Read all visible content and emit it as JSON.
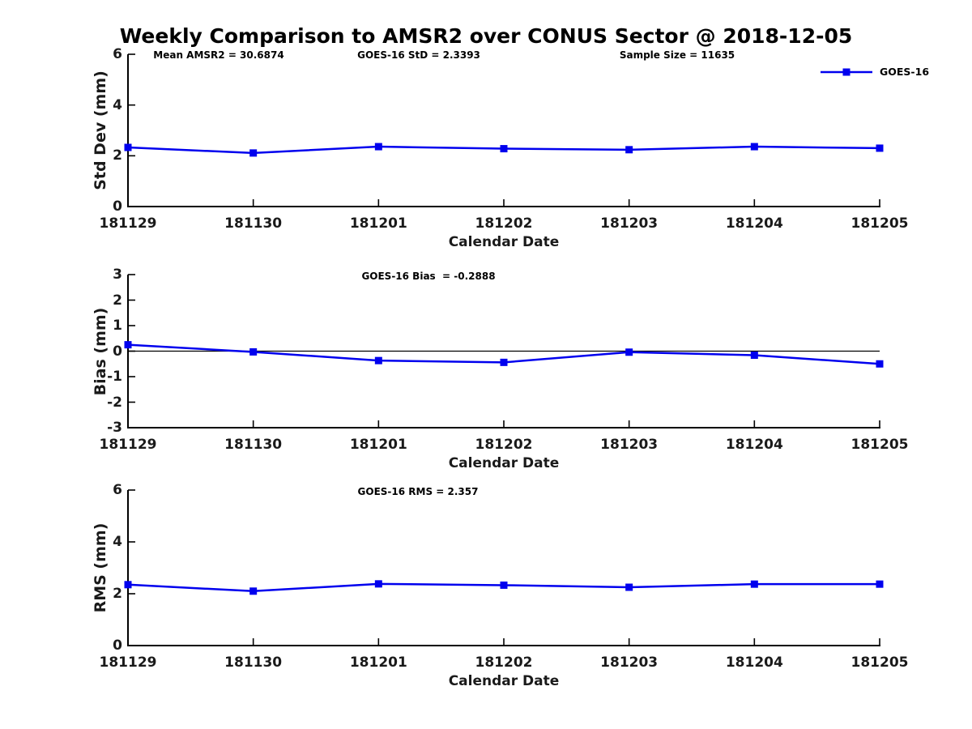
{
  "title": "Weekly Comparison to AMSR2 over CONUS Sector @ 2018-12-05",
  "colors": {
    "line": "#0000ee",
    "axis": "#000000"
  },
  "legend": {
    "series_label": "GOES-16"
  },
  "chart_data": [
    {
      "type": "line",
      "panel": "std-dev",
      "categories": [
        "181129",
        "181130",
        "181201",
        "181202",
        "181203",
        "181204",
        "181205"
      ],
      "series": [
        {
          "name": "GOES-16",
          "values": [
            2.33,
            2.11,
            2.36,
            2.28,
            2.24,
            2.36,
            2.3
          ]
        }
      ],
      "xlabel": "Calendar Date",
      "ylabel": "Std Dev (mm)",
      "ylim": [
        0,
        6
      ],
      "yticks": [
        0,
        2,
        4,
        6
      ],
      "zero_line": false,
      "grid": false,
      "legend_position": "top-right",
      "marker": "square",
      "annotations": [
        {
          "text": "Mean AMSR2 = 30.6874"
        },
        {
          "text": "GOES-16 StD = 2.3393"
        },
        {
          "text": "Sample Size = 11635"
        }
      ]
    },
    {
      "type": "line",
      "panel": "bias",
      "categories": [
        "181129",
        "181130",
        "181201",
        "181202",
        "181203",
        "181204",
        "181205"
      ],
      "series": [
        {
          "name": "GOES-16",
          "values": [
            0.25,
            -0.03,
            -0.37,
            -0.44,
            -0.04,
            -0.16,
            -0.5
          ]
        }
      ],
      "xlabel": "Calendar Date",
      "ylabel": "Bias (mm)",
      "ylim": [
        -3,
        3
      ],
      "yticks": [
        -3,
        -2,
        -1,
        0,
        1,
        2,
        3
      ],
      "zero_line": true,
      "grid": false,
      "marker": "square",
      "annotations": [
        {
          "text": "GOES-16 Bias  = -0.2888"
        }
      ]
    },
    {
      "type": "line",
      "panel": "rms",
      "categories": [
        "181129",
        "181130",
        "181201",
        "181202",
        "181203",
        "181204",
        "181205"
      ],
      "series": [
        {
          "name": "GOES-16",
          "values": [
            2.35,
            2.1,
            2.38,
            2.33,
            2.25,
            2.37,
            2.37
          ]
        }
      ],
      "xlabel": "Calendar Date",
      "ylabel": "RMS (mm)",
      "ylim": [
        0,
        6
      ],
      "yticks": [
        0,
        2,
        4,
        6
      ],
      "zero_line": false,
      "grid": false,
      "marker": "square",
      "annotations": [
        {
          "text": "GOES-16 RMS = 2.357"
        }
      ]
    }
  ]
}
